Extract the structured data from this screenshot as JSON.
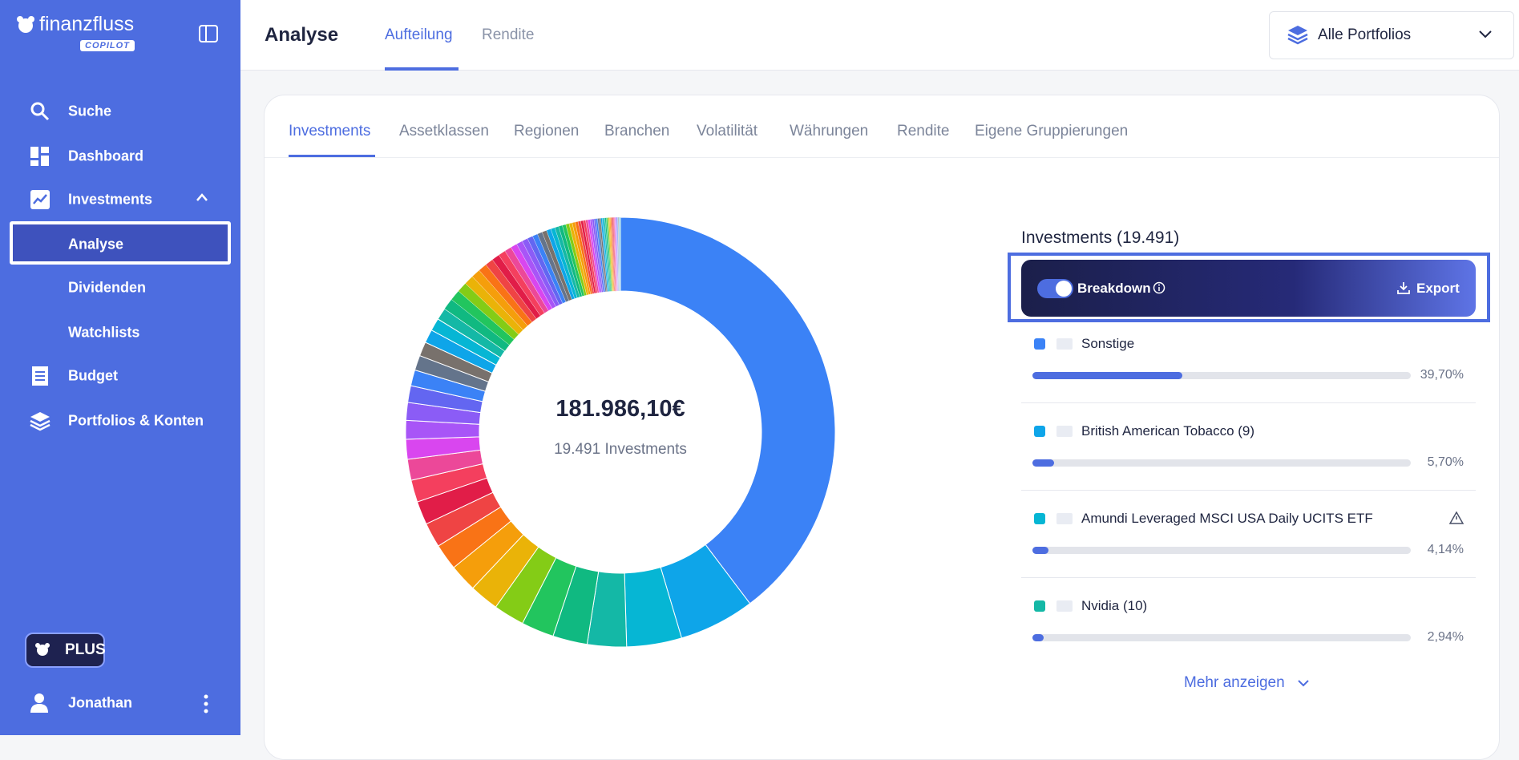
{
  "sidebar": {
    "brand": "finanzfluss",
    "badge": "COPILOT",
    "nav": [
      "Suche",
      "Dashboard",
      "Investments",
      "Analyse",
      "Dividenden",
      "Watchlists",
      "Budget",
      "Portfolios & Konten"
    ],
    "plus": "PLUS",
    "user": "Jonathan"
  },
  "header": {
    "title": "Analyse",
    "tabs": [
      "Aufteilung",
      "Rendite"
    ],
    "portfolio": "Alle Portfolios"
  },
  "subtabs": [
    "Investments",
    "Assetklassen",
    "Regionen",
    "Branchen",
    "Volatilität",
    "Währungen",
    "Rendite",
    "Eigene Gruppierungen"
  ],
  "chart_data": {
    "type": "pie",
    "donut": true,
    "center_value": "181.986,10€",
    "center_label": "19.491 Investments",
    "title": "Investments (19.491)",
    "categories": [
      "Sonstige",
      "British American Tobacco (9)",
      "Amundi Leveraged MSCI USA Daily UCITS ETF",
      "Nvidia (10)"
    ],
    "values": [
      39.7,
      5.7,
      4.14,
      2.94
    ],
    "value_labels": [
      "39,70%",
      "5,70%",
      "4,14%",
      "2,94%"
    ],
    "colors": [
      "#3b82f6",
      "#0ea5e9",
      "#06b6d4",
      "#14b8a6"
    ]
  },
  "breakdown": {
    "label": "Breakdown",
    "export": "Export"
  },
  "more": "Mehr anzeigen"
}
